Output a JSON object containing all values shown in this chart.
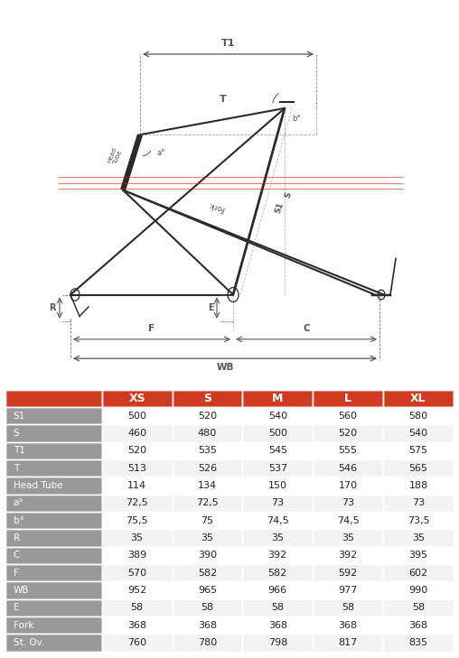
{
  "header_color": "#D03A20",
  "header_text_color": "#FFFFFF",
  "row_label_bg": "#999999",
  "row_bg_white": "#FFFFFF",
  "row_bg_light": "#F2F2F2",
  "text_color_dark": "#222222",
  "text_color_label": "#FFFFFF",
  "columns": [
    "XS",
    "S",
    "M",
    "L",
    "XL"
  ],
  "rows": [
    {
      "label": "S1",
      "values": [
        "500",
        "520",
        "540",
        "560",
        "580"
      ]
    },
    {
      "label": "S",
      "values": [
        "460",
        "480",
        "500",
        "520",
        "540"
      ]
    },
    {
      "label": "T1",
      "values": [
        "520",
        "535",
        "545",
        "555",
        "575"
      ]
    },
    {
      "label": "T",
      "values": [
        "513",
        "526",
        "537",
        "546",
        "565"
      ]
    },
    {
      "label": "Head Tube",
      "values": [
        "114",
        "134",
        "150",
        "170",
        "188"
      ]
    },
    {
      "label": "a°",
      "values": [
        "72,5",
        "72,5",
        "73",
        "73",
        "73"
      ]
    },
    {
      "label": "b°",
      "values": [
        "75,5",
        "75",
        "74,5",
        "74,5",
        "73,5"
      ]
    },
    {
      "label": "R",
      "values": [
        "35",
        "35",
        "35",
        "35",
        "35"
      ]
    },
    {
      "label": "C",
      "values": [
        "389",
        "390",
        "392",
        "392",
        "395"
      ]
    },
    {
      "label": "F",
      "values": [
        "570",
        "582",
        "582",
        "592",
        "602"
      ]
    },
    {
      "label": "WB",
      "values": [
        "952",
        "965",
        "966",
        "977",
        "990"
      ]
    },
    {
      "label": "E",
      "values": [
        "58",
        "58",
        "58",
        "58",
        "58"
      ]
    },
    {
      "label": "Fork",
      "values": [
        "368",
        "368",
        "368",
        "368",
        "368"
      ]
    },
    {
      "label": "St. Ov.",
      "values": [
        "760",
        "780",
        "798",
        "817",
        "835"
      ]
    }
  ],
  "fig_width": 5.08,
  "fig_height": 7.29,
  "dpi": 100,
  "diagram_bg": "#FFFFFF",
  "col_frame": "#2A2A2A",
  "col_dim": "#555555",
  "col_red": "#CC2200"
}
